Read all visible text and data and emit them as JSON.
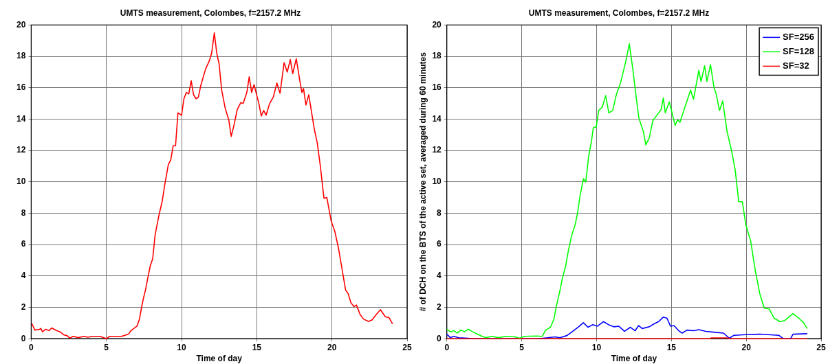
{
  "chart_data": [
    {
      "type": "line",
      "title": "UMTS measurement, Colombes, f=2157.2 MHz",
      "xlabel": "Time of day",
      "xlim": [
        0,
        25
      ],
      "xticks": [
        0,
        5,
        10,
        15,
        20,
        25
      ],
      "ylim": [
        0,
        20
      ],
      "yticks": [
        0,
        2,
        4,
        6,
        8,
        10,
        12,
        14,
        16,
        18,
        20
      ],
      "grid": true,
      "legend": false,
      "series": [
        {
          "color": "#ff0000",
          "x": [
            0.05,
            0.24,
            0.56,
            0.64,
            0.75,
            0.96,
            1.2,
            1.36,
            1.68,
            1.92,
            2.16,
            2.4,
            2.56,
            2.8,
            3.12,
            3.52,
            3.76,
            4.08,
            4.56,
            4.8,
            5.0,
            5.2,
            5.68,
            6.0,
            6.24,
            6.48,
            6.64,
            6.88,
            7.04,
            7.2,
            7.36,
            7.47,
            7.6,
            7.76,
            7.92,
            8.08,
            8.24,
            8.48,
            8.72,
            8.88,
            9.12,
            9.28,
            9.44,
            9.6,
            9.76,
            10.0,
            10.16,
            10.32,
            10.48,
            10.64,
            10.8,
            10.96,
            11.12,
            11.28,
            11.6,
            11.84,
            12.0,
            12.18,
            12.34,
            12.5,
            12.66,
            12.9,
            13.14,
            13.3,
            13.46,
            13.7,
            13.94,
            14.1,
            14.34,
            14.5,
            14.66,
            14.82,
            15.14,
            15.3,
            15.46,
            15.62,
            15.86,
            16.1,
            16.34,
            16.55,
            16.82,
            17.03,
            17.23,
            17.39,
            17.63,
            17.84,
            18.0,
            18.11,
            18.27,
            18.46,
            18.83,
            19.02,
            19.23,
            19.47,
            19.66,
            19.95,
            20.19,
            20.43,
            20.91,
            21.07,
            21.26,
            21.47,
            21.63,
            21.87,
            22.1,
            22.43,
            22.67,
            22.91,
            23.23,
            23.55,
            23.79,
            24.03
          ],
          "values": [
            0.96,
            0.55,
            0.6,
            0.66,
            0.44,
            0.6,
            0.52,
            0.69,
            0.52,
            0.44,
            0.25,
            0.19,
            0.04,
            0.15,
            0.07,
            0.15,
            0.1,
            0.15,
            0.15,
            0.07,
            0,
            0.15,
            0.15,
            0.15,
            0.22,
            0.3,
            0.52,
            0.69,
            0.81,
            1.25,
            2.1,
            2.6,
            3.1,
            3.9,
            4.65,
            5.1,
            6.6,
            7.8,
            8.8,
            9.8,
            11.1,
            11.4,
            12.3,
            12.3,
            14.4,
            14.25,
            15.3,
            15.7,
            15.6,
            16.45,
            15.55,
            15.3,
            15.4,
            16.15,
            17.2,
            17.7,
            18.2,
            19.5,
            18.2,
            17.5,
            15.9,
            14.7,
            13.95,
            12.9,
            13.5,
            14.6,
            15.05,
            15.0,
            15.7,
            16.7,
            15.7,
            16.2,
            15.0,
            14.2,
            14.55,
            14.25,
            15.0,
            15.4,
            16.3,
            15.65,
            17.6,
            17.0,
            17.8,
            16.9,
            17.85,
            16.6,
            15.7,
            15.95,
            14.9,
            15.55,
            13.35,
            12.5,
            11.0,
            8.95,
            9.0,
            7.5,
            6.85,
            5.8,
            3.1,
            2.9,
            2.3,
            2.05,
            2.15,
            1.55,
            1.25,
            1.1,
            1.2,
            1.5,
            1.85,
            1.4,
            1.35,
            0.95
          ]
        }
      ]
    },
    {
      "type": "line",
      "title": "UMTS measurement, Colombes, f=2157.2 MHz",
      "xlabel": "Time of day",
      "ylabel": "# of DCH on the BTS of the active set, averaged during 60 minutes",
      "xlim": [
        0,
        25
      ],
      "xticks": [
        0,
        5,
        10,
        15,
        20,
        25
      ],
      "ylim": [
        0,
        20
      ],
      "yticks": [
        0,
        2,
        4,
        6,
        8,
        10,
        12,
        14,
        16,
        18,
        20
      ],
      "grid": true,
      "legend": "top right",
      "series": [
        {
          "name": "SF=256",
          "color": "#0000ff",
          "x": [
            0,
            0.24,
            0.47,
            0.79,
            1.42,
            1.57,
            6.13,
            7.23,
            7.55,
            8.02,
            8.41,
            8.8,
            9.12,
            9.43,
            9.75,
            10.06,
            10.46,
            10.85,
            11.16,
            11.48,
            11.87,
            12.26,
            12.58,
            12.81,
            13.05,
            13.52,
            13.84,
            14.15,
            14.46,
            14.7,
            14.94,
            15.17,
            15.49,
            15.72,
            16.04,
            16.51,
            16.83,
            17.3,
            17.93,
            18.48,
            18.87,
            19.18,
            19.97,
            20.91,
            22.17,
            22.48,
            22.96,
            23.12,
            24.07
          ],
          "values": [
            0.29,
            0.07,
            0.15,
            0.06,
            0.03,
            0,
            0,
            0.12,
            0.06,
            0.2,
            0.47,
            0.76,
            1.02,
            0.73,
            0.9,
            0.8,
            1.09,
            0.87,
            0.76,
            0.8,
            0.47,
            0.73,
            0.51,
            0.84,
            0.65,
            0.76,
            0.95,
            1.09,
            1.38,
            1.31,
            0.8,
            0.84,
            0.51,
            0.36,
            0.55,
            0.51,
            0.58,
            0.47,
            0.41,
            0.36,
            0.03,
            0.22,
            0.26,
            0.29,
            0.22,
            0,
            0,
            0.29,
            0.32
          ]
        },
        {
          "name": "SF=128",
          "color": "#00ff00",
          "x": [
            0,
            0.24,
            0.47,
            0.71,
            0.94,
            1.18,
            1.42,
            1.73,
            2.04,
            2.36,
            2.6,
            2.99,
            3.46,
            3.93,
            4.56,
            4.87,
            5.19,
            5.97,
            6.37,
            6.6,
            6.92,
            7.15,
            7.31,
            7.55,
            7.7,
            7.94,
            8.1,
            8.33,
            8.57,
            8.73,
            8.88,
            9.12,
            9.28,
            9.47,
            9.67,
            9.78,
            9.98,
            10.14,
            10.38,
            10.61,
            10.82,
            11.08,
            11.32,
            11.6,
            11.95,
            12.19,
            12.42,
            12.66,
            12.82,
            13.13,
            13.29,
            13.52,
            13.76,
            13.99,
            14.31,
            14.46,
            14.59,
            14.86,
            15.25,
            15.41,
            15.57,
            15.88,
            16.28,
            16.48,
            16.83,
            16.98,
            17.22,
            17.37,
            17.61,
            17.85,
            18.0,
            18.21,
            18.43,
            18.71,
            19.03,
            19.26,
            19.5,
            19.74,
            19.97,
            20.29,
            20.6,
            20.91,
            21.2,
            21.54,
            21.86,
            22.25,
            22.57,
            23.12,
            23.51,
            23.83,
            24.07
          ],
          "values": [
            0.61,
            0.44,
            0.51,
            0.36,
            0.55,
            0.44,
            0.61,
            0.44,
            0.29,
            0.15,
            0.07,
            0.15,
            0.07,
            0.15,
            0.12,
            0.03,
            0.15,
            0.17,
            0.15,
            0.55,
            0.73,
            1.24,
            2.04,
            3.05,
            3.78,
            4.65,
            5.53,
            6.55,
            7.27,
            8.0,
            9.0,
            10.2,
            10.0,
            11.6,
            12.65,
            13.45,
            13.5,
            14.55,
            14.76,
            15.5,
            14.4,
            14.55,
            15.56,
            16.3,
            17.67,
            18.8,
            17.2,
            15.3,
            14.1,
            13.2,
            12.36,
            12.8,
            13.9,
            14.2,
            14.6,
            15.35,
            14.4,
            15.1,
            13.6,
            13.96,
            13.8,
            14.7,
            15.85,
            15.27,
            17.1,
            16.4,
            17.4,
            16.4,
            17.48,
            16.0,
            15.56,
            14.55,
            15.16,
            13.24,
            11.93,
            10.76,
            8.73,
            8.73,
            7.27,
            6.25,
            4.36,
            2.84,
            1.96,
            1.89,
            1.31,
            1.09,
            1.16,
            1.6,
            1.31,
            1.02,
            0.65
          ]
        },
        {
          "name": "SF=32",
          "color": "#ff0000",
          "x": [
            0,
            17.6,
            17.65,
            18.8,
            18.85,
            24.07
          ],
          "values": [
            0,
            0,
            0.05,
            0.05,
            0,
            0
          ]
        }
      ]
    }
  ]
}
